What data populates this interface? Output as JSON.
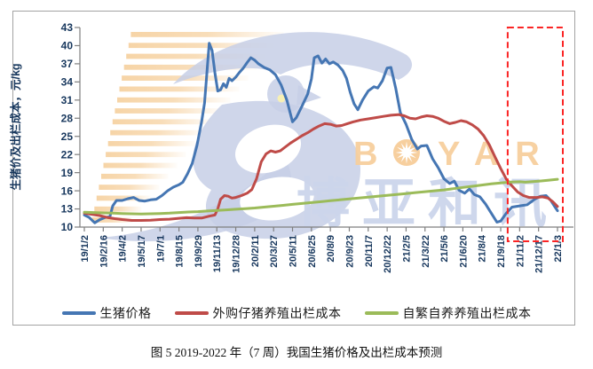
{
  "caption": "图 5 2019-2022 年（7 周）我国生猪价格及出栏成本预测",
  "watermark": {
    "boyar": "BOYAR",
    "cjk": "博亚和讯"
  },
  "colors": {
    "axis_text": "#17375d",
    "axis_line": "#7f7f7f",
    "forecast_box": "#fb2424",
    "watermark_tan": "#f7cf9e",
    "watermark_stripe": "#f6d2a2",
    "watermark_lavender": "#c7cfe6",
    "watermark_eye": "#f7f0b4"
  },
  "chart_data": {
    "type": "line",
    "title": "图 5 2019-2022 年（7 周）我国生猪价格及出栏成本预测",
    "ylabel": "生猪价及出栏成本，元/kg",
    "ylim": [
      10,
      43
    ],
    "y_ticks": [
      43,
      40,
      37,
      34,
      31,
      28,
      25,
      22,
      19,
      16,
      13,
      10
    ],
    "grid": false,
    "legend_position": "bottom",
    "x_tick_labels": [
      "19/1/2",
      "19/2/16",
      "19/4/2",
      "19/5/17",
      "19/7/1",
      "19/8/15",
      "19/9/29",
      "19/11/13",
      "19/12/28",
      "20/2/11",
      "20/3/27",
      "20/5/11",
      "20/6/25",
      "20/8/9",
      "20/9/23",
      "20/11/7",
      "20/12/22",
      "21/2/5",
      "21/3/22",
      "21/5/6",
      "21/6/20",
      "21/8/4",
      "21/9/18",
      "21/11/2",
      "21/12/17",
      "22/1/3"
    ],
    "x_index_domain": [
      0,
      25
    ],
    "forecast_box": {
      "x_from_label": "21/11/2",
      "x_to_label": "22/1/3",
      "note": "red dashed box highlighting the final forecast weeks"
    },
    "series": [
      {
        "name": "生猪价格",
        "color": "#4576b3",
        "points": [
          [
            0,
            12.0
          ],
          [
            0.25,
            11.6
          ],
          [
            0.55,
            10.7
          ],
          [
            0.8,
            11.2
          ],
          [
            1.1,
            11.6
          ],
          [
            1.35,
            11.7
          ],
          [
            1.5,
            13.5
          ],
          [
            1.7,
            14.4
          ],
          [
            2.0,
            14.4
          ],
          [
            2.3,
            14.7
          ],
          [
            2.6,
            14.9
          ],
          [
            2.9,
            14.4
          ],
          [
            3.2,
            14.3
          ],
          [
            3.5,
            14.5
          ],
          [
            3.8,
            14.6
          ],
          [
            4.1,
            15.2
          ],
          [
            4.4,
            16.0
          ],
          [
            4.7,
            16.6
          ],
          [
            5.0,
            17.0
          ],
          [
            5.2,
            17.4
          ],
          [
            5.45,
            18.8
          ],
          [
            5.7,
            20.5
          ],
          [
            5.95,
            23.5
          ],
          [
            6.2,
            27.5
          ],
          [
            6.35,
            30.5
          ],
          [
            6.5,
            36.5
          ],
          [
            6.6,
            40.4
          ],
          [
            6.75,
            39.2
          ],
          [
            6.9,
            35.5
          ],
          [
            7.05,
            32.5
          ],
          [
            7.2,
            32.7
          ],
          [
            7.35,
            33.7
          ],
          [
            7.5,
            33.1
          ],
          [
            7.65,
            34.6
          ],
          [
            7.8,
            34.2
          ],
          [
            8.0,
            34.8
          ],
          [
            8.2,
            35.6
          ],
          [
            8.4,
            36.3
          ],
          [
            8.6,
            37.2
          ],
          [
            8.8,
            38.0
          ],
          [
            9.0,
            37.6
          ],
          [
            9.2,
            37.0
          ],
          [
            9.5,
            36.4
          ],
          [
            9.8,
            36.0
          ],
          [
            10.1,
            35.2
          ],
          [
            10.4,
            33.5
          ],
          [
            10.7,
            31.0
          ],
          [
            11.0,
            27.4
          ],
          [
            11.2,
            28.1
          ],
          [
            11.5,
            30.0
          ],
          [
            11.8,
            32.0
          ],
          [
            12.0,
            34.5
          ],
          [
            12.15,
            38.0
          ],
          [
            12.35,
            38.3
          ],
          [
            12.55,
            37.1
          ],
          [
            12.75,
            37.8
          ],
          [
            12.95,
            37.0
          ],
          [
            13.15,
            37.3
          ],
          [
            13.4,
            36.8
          ],
          [
            13.65,
            35.9
          ],
          [
            13.85,
            34.6
          ],
          [
            14.05,
            32.3
          ],
          [
            14.25,
            30.4
          ],
          [
            14.45,
            29.4
          ],
          [
            14.7,
            31.0
          ],
          [
            15.0,
            32.5
          ],
          [
            15.3,
            33.2
          ],
          [
            15.5,
            33.0
          ],
          [
            15.75,
            34.2
          ],
          [
            16.0,
            36.3
          ],
          [
            16.2,
            36.4
          ],
          [
            16.45,
            33.0
          ],
          [
            16.7,
            28.9
          ],
          [
            17.0,
            27.0
          ],
          [
            17.3,
            24.5
          ],
          [
            17.6,
            22.9
          ],
          [
            17.8,
            23.4
          ],
          [
            18.1,
            23.5
          ],
          [
            18.4,
            21.3
          ],
          [
            18.7,
            19.8
          ],
          [
            19.0,
            18.0
          ],
          [
            19.3,
            17.2
          ],
          [
            19.55,
            17.6
          ],
          [
            19.8,
            16.1
          ],
          [
            20.1,
            15.6
          ],
          [
            20.35,
            16.3
          ],
          [
            20.6,
            15.4
          ],
          [
            20.9,
            15.0
          ],
          [
            21.2,
            13.8
          ],
          [
            21.5,
            12.3
          ],
          [
            21.8,
            10.8
          ],
          [
            22.0,
            11.0
          ],
          [
            22.3,
            12.3
          ],
          [
            22.6,
            13.3
          ],
          [
            23.0,
            13.5
          ],
          [
            23.4,
            13.7
          ],
          [
            23.8,
            14.6
          ],
          [
            24.1,
            15.1
          ],
          [
            24.4,
            15.2
          ],
          [
            24.65,
            14.4
          ],
          [
            24.85,
            13.4
          ],
          [
            25,
            12.7
          ]
        ]
      },
      {
        "name": "外购仔猪养殖出栏成本",
        "color": "#bf4b48",
        "points": [
          [
            0,
            12.3
          ],
          [
            0.4,
            12.1
          ],
          [
            0.8,
            11.9
          ],
          [
            1.2,
            11.6
          ],
          [
            1.6,
            11.4
          ],
          [
            2.0,
            11.25
          ],
          [
            2.5,
            11.1
          ],
          [
            3.0,
            11.1
          ],
          [
            3.5,
            11.15
          ],
          [
            4.0,
            11.25
          ],
          [
            4.5,
            11.3
          ],
          [
            5.0,
            11.45
          ],
          [
            5.4,
            11.55
          ],
          [
            5.8,
            11.5
          ],
          [
            6.2,
            11.5
          ],
          [
            6.6,
            11.8
          ],
          [
            6.9,
            12.0
          ],
          [
            7.05,
            13.0
          ],
          [
            7.2,
            14.6
          ],
          [
            7.4,
            15.2
          ],
          [
            7.6,
            15.1
          ],
          [
            7.8,
            14.8
          ],
          [
            8.0,
            14.9
          ],
          [
            8.3,
            15.2
          ],
          [
            8.6,
            15.6
          ],
          [
            8.85,
            16.2
          ],
          [
            9.1,
            18.0
          ],
          [
            9.35,
            20.8
          ],
          [
            9.6,
            22.1
          ],
          [
            9.85,
            22.6
          ],
          [
            10.1,
            22.4
          ],
          [
            10.35,
            22.6
          ],
          [
            10.6,
            23.2
          ],
          [
            10.9,
            23.9
          ],
          [
            11.2,
            24.5
          ],
          [
            11.5,
            25.1
          ],
          [
            11.8,
            25.6
          ],
          [
            12.1,
            26.2
          ],
          [
            12.4,
            26.7
          ],
          [
            12.7,
            27.1
          ],
          [
            13.0,
            27.0
          ],
          [
            13.3,
            26.7
          ],
          [
            13.6,
            26.8
          ],
          [
            13.9,
            27.1
          ],
          [
            14.2,
            27.4
          ],
          [
            14.6,
            27.7
          ],
          [
            15.0,
            27.9
          ],
          [
            15.4,
            28.1
          ],
          [
            15.8,
            28.3
          ],
          [
            16.2,
            28.5
          ],
          [
            16.6,
            28.6
          ],
          [
            16.9,
            28.4
          ],
          [
            17.2,
            28.0
          ],
          [
            17.5,
            27.9
          ],
          [
            17.8,
            28.2
          ],
          [
            18.1,
            28.4
          ],
          [
            18.4,
            28.3
          ],
          [
            18.7,
            28.0
          ],
          [
            19.0,
            27.5
          ],
          [
            19.3,
            27.1
          ],
          [
            19.6,
            27.3
          ],
          [
            19.9,
            27.6
          ],
          [
            20.2,
            27.4
          ],
          [
            20.5,
            26.9
          ],
          [
            20.8,
            26.2
          ],
          [
            21.1,
            25.1
          ],
          [
            21.4,
            23.6
          ],
          [
            21.7,
            21.6
          ],
          [
            22.0,
            19.7
          ],
          [
            22.3,
            17.9
          ],
          [
            22.6,
            16.8
          ],
          [
            22.9,
            15.8
          ],
          [
            23.2,
            15.2
          ],
          [
            23.5,
            14.9
          ],
          [
            23.9,
            14.9
          ],
          [
            24.2,
            15.0
          ],
          [
            24.5,
            14.8
          ],
          [
            24.75,
            14.2
          ],
          [
            25,
            13.4
          ]
        ]
      },
      {
        "name": "自繁自养养殖出栏成本",
        "color": "#9bbb59",
        "points": [
          [
            0,
            12.45
          ],
          [
            0.5,
            12.4
          ],
          [
            1,
            12.35
          ],
          [
            1.5,
            12.3
          ],
          [
            2,
            12.25
          ],
          [
            2.5,
            12.2
          ],
          [
            3,
            12.15
          ],
          [
            3.5,
            12.2
          ],
          [
            4,
            12.25
          ],
          [
            4.5,
            12.3
          ],
          [
            5,
            12.4
          ],
          [
            5.5,
            12.5
          ],
          [
            6,
            12.55
          ],
          [
            6.5,
            12.65
          ],
          [
            7,
            12.75
          ],
          [
            7.5,
            12.85
          ],
          [
            8,
            12.95
          ],
          [
            8.5,
            13.05
          ],
          [
            9,
            13.15
          ],
          [
            9.5,
            13.3
          ],
          [
            10,
            13.45
          ],
          [
            10.5,
            13.6
          ],
          [
            11,
            13.75
          ],
          [
            11.5,
            13.9
          ],
          [
            12,
            14.05
          ],
          [
            12.5,
            14.2
          ],
          [
            13,
            14.35
          ],
          [
            13.5,
            14.5
          ],
          [
            14,
            14.65
          ],
          [
            14.5,
            14.8
          ],
          [
            15,
            14.95
          ],
          [
            15.5,
            15.1
          ],
          [
            16,
            15.25
          ],
          [
            16.5,
            15.4
          ],
          [
            17,
            15.55
          ],
          [
            17.5,
            15.7
          ],
          [
            18,
            15.85
          ],
          [
            18.5,
            16.0
          ],
          [
            19,
            16.15
          ],
          [
            19.5,
            16.35
          ],
          [
            20,
            16.55
          ],
          [
            20.5,
            16.75
          ],
          [
            21,
            16.95
          ],
          [
            21.5,
            17.15
          ],
          [
            22,
            17.3
          ],
          [
            22.5,
            17.45
          ],
          [
            23,
            17.5
          ],
          [
            23.3,
            17.42
          ],
          [
            23.6,
            17.5
          ],
          [
            24,
            17.6
          ],
          [
            24.5,
            17.75
          ],
          [
            25,
            17.9
          ]
        ]
      }
    ]
  }
}
